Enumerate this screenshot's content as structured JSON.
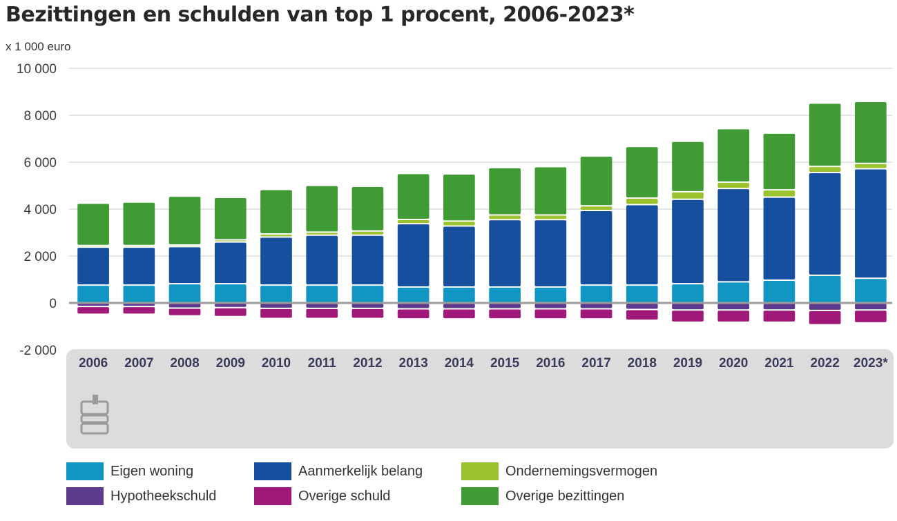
{
  "chart_data": {
    "type": "bar",
    "stacked": true,
    "title": "Bezittingen en schulden van top 1 procent, 2006-2023*",
    "ylabel": "x 1 000 euro",
    "xlabel": "",
    "ylim": [
      -2000,
      10000
    ],
    "yticks": [
      10000,
      8000,
      6000,
      4000,
      2000,
      0,
      -2000
    ],
    "ytick_labels": [
      "10 000",
      "8 000",
      "6 000",
      "4 000",
      "2 000",
      "0",
      "-2 000"
    ],
    "grid": true,
    "legend_position": "bottom",
    "categories": [
      "2006",
      "2007",
      "2008",
      "2009",
      "2010",
      "2011",
      "2012",
      "2013",
      "2014",
      "2015",
      "2016",
      "2017",
      "2018",
      "2019",
      "2020",
      "2021",
      "2022",
      "2023*"
    ],
    "series": [
      {
        "name": "Eigen woning",
        "color": "#1196c4",
        "values": [
          760,
          760,
          820,
          820,
          760,
          760,
          760,
          680,
          680,
          680,
          680,
          760,
          760,
          820,
          900,
          970,
          1180,
          1050
        ]
      },
      {
        "name": "Aanmerkelijk belang",
        "color": "#164f9e",
        "values": [
          1620,
          1620,
          1580,
          1780,
          2050,
          2130,
          2130,
          2700,
          2600,
          2870,
          2870,
          3180,
          3430,
          3600,
          3980,
          3540,
          4380,
          4670
        ]
      },
      {
        "name": "Ondernemingsvermogen",
        "color": "#9ac32d",
        "values": [
          70,
          70,
          70,
          90,
          130,
          130,
          180,
          180,
          210,
          200,
          200,
          200,
          280,
          320,
          270,
          310,
          260,
          230
        ]
      },
      {
        "name": "Overige bezittingen",
        "color": "#419b35",
        "values": [
          1800,
          1850,
          2080,
          1810,
          1900,
          1990,
          1900,
          1960,
          2010,
          2020,
          2060,
          2120,
          2200,
          2150,
          2280,
          2420,
          2700,
          2640
        ]
      },
      {
        "name": "Hypotheekschuld",
        "color": "#5e3a8f",
        "values": [
          -150,
          -150,
          -220,
          -200,
          -230,
          -230,
          -230,
          -250,
          -250,
          -250,
          -250,
          -250,
          -280,
          -300,
          -300,
          -300,
          -320,
          -300
        ]
      },
      {
        "name": "Overige schuld",
        "color": "#a0197a",
        "values": [
          -330,
          -330,
          -330,
          -380,
          -430,
          -430,
          -430,
          -430,
          -430,
          -430,
          -430,
          -430,
          -460,
          -520,
          -520,
          -520,
          -610,
          -550
        ]
      }
    ]
  },
  "legend": [
    {
      "label": "Eigen woning",
      "color": "#1196c4"
    },
    {
      "label": "Aanmerkelijk belang",
      "color": "#164f9e"
    },
    {
      "label": "Ondernemingsvermogen",
      "color": "#9ac32d"
    },
    {
      "label": "Hypotheekschuld",
      "color": "#5e3a8f"
    },
    {
      "label": "Overige schuld",
      "color": "#a0197a"
    },
    {
      "label": "Overige bezittingen",
      "color": "#419b35"
    }
  ],
  "logo": {
    "icon": "cbs-logo-icon"
  }
}
